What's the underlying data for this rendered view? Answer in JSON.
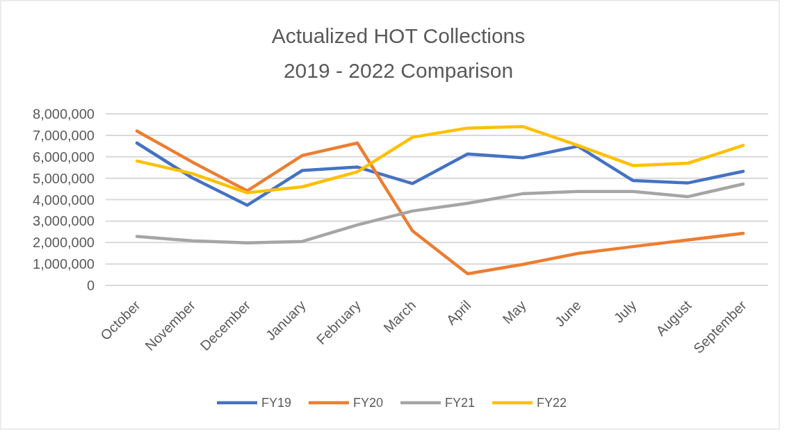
{
  "chart_data": {
    "type": "line",
    "title": "Actualized HOT Collections",
    "subtitle": "2019 - 2022 Comparison",
    "categories": [
      "October",
      "November",
      "December",
      "January",
      "February",
      "March",
      "April",
      "May",
      "June",
      "July",
      "August",
      "September"
    ],
    "series": [
      {
        "name": "FY19",
        "color": "#4472c4",
        "values": [
          6640000,
          5020000,
          3740000,
          5360000,
          5520000,
          4750000,
          6130000,
          5950000,
          6490000,
          4890000,
          4780000,
          5320000
        ]
      },
      {
        "name": "FY20",
        "color": "#ed7d31",
        "values": [
          7200000,
          5760000,
          4410000,
          6060000,
          6640000,
          2540000,
          540000,
          980000,
          1490000,
          1810000,
          2120000,
          2430000
        ]
      },
      {
        "name": "FY21",
        "color": "#a5a5a5",
        "values": [
          2280000,
          2080000,
          1980000,
          2050000,
          2820000,
          3470000,
          3830000,
          4280000,
          4380000,
          4380000,
          4140000,
          4730000
        ]
      },
      {
        "name": "FY22",
        "color": "#ffc000",
        "values": [
          5800000,
          5220000,
          4320000,
          4600000,
          5300000,
          6910000,
          7340000,
          7410000,
          6530000,
          5590000,
          5700000,
          6530000
        ]
      }
    ],
    "ylim": [
      0,
      8000000
    ],
    "yticks": [
      {
        "value": 0,
        "label": "0"
      },
      {
        "value": 1000000,
        "label": "1,000,000"
      },
      {
        "value": 2000000,
        "label": "2,000,000"
      },
      {
        "value": 3000000,
        "label": "3,000,000"
      },
      {
        "value": 4000000,
        "label": "4,000,000"
      },
      {
        "value": 5000000,
        "label": "5,000,000"
      },
      {
        "value": 6000000,
        "label": "6,000,000"
      },
      {
        "value": 7000000,
        "label": "7,000,000"
      },
      {
        "value": 8000000,
        "label": "8,000,000"
      }
    ],
    "grid": "y",
    "legend": "bottom",
    "marker": "none",
    "line_style": "solid"
  }
}
